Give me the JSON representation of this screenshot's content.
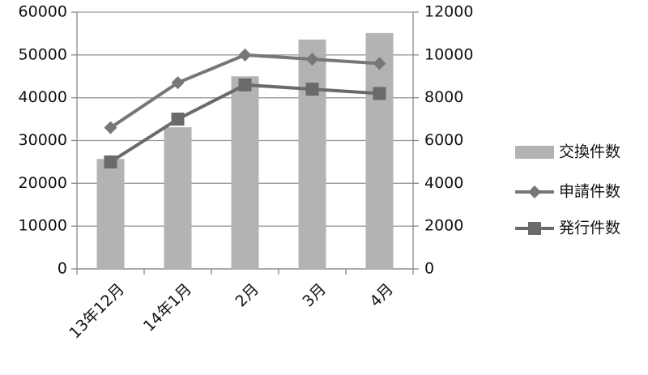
{
  "chart_data": {
    "type": "bar-line",
    "categories": [
      "13年12月",
      "14年1月",
      "2月",
      "3月",
      "4月"
    ],
    "series": [
      {
        "name": "交換件数",
        "type": "bar",
        "color": "#b3b3b3",
        "values": [
          25700,
          33100,
          45000,
          53600,
          55100
        ]
      },
      {
        "name": "申請件数",
        "type": "line",
        "marker": "diamond",
        "color": "#777777",
        "axis": "y2",
        "values": [
          6600,
          8700,
          10000,
          9800,
          9600
        ]
      },
      {
        "name": "発行件数",
        "type": "line",
        "marker": "square",
        "color": "#6a6a6a",
        "axis": "y2",
        "values": [
          5000,
          7000,
          8600,
          8400,
          8200
        ]
      }
    ],
    "ylim": [
      0,
      60000
    ],
    "yticks": [
      0,
      10000,
      20000,
      30000,
      40000,
      50000,
      60000
    ],
    "y2lim": [
      0,
      12000
    ],
    "y2ticks": [
      0,
      2000,
      4000,
      6000,
      8000,
      10000,
      12000
    ],
    "grid": true,
    "legend": "right"
  }
}
